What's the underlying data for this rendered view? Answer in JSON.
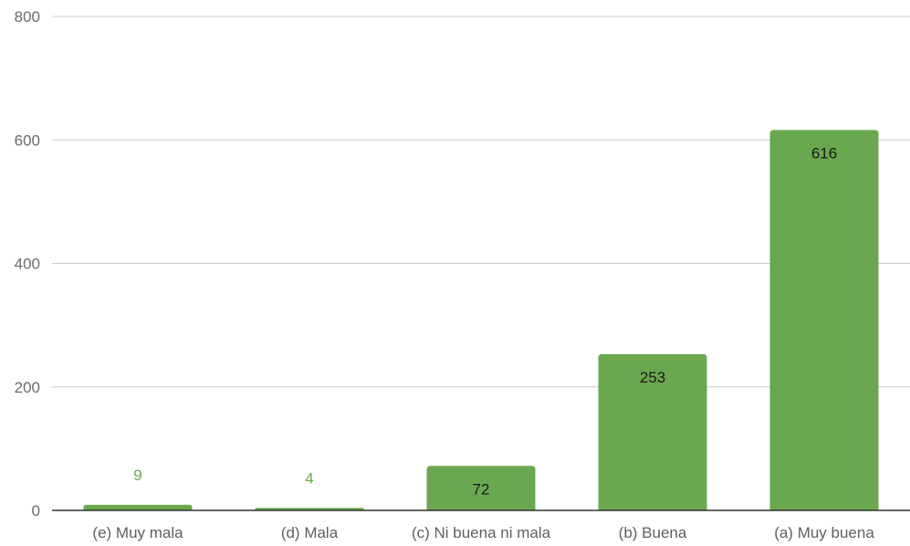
{
  "chart_data": {
    "type": "bar",
    "title": "",
    "xlabel": "",
    "ylabel": "",
    "categories": [
      "(e) Muy mala",
      "(d) Mala",
      "(c) Ni buena ni mala",
      "(b) Buena",
      "(a) Muy buena"
    ],
    "values": [
      9,
      4,
      72,
      253,
      616
    ],
    "ylim": [
      0,
      800
    ],
    "yticks": [
      0,
      200,
      400,
      600,
      800
    ],
    "grid": true,
    "legend": "none",
    "colors": {
      "bar": "#6aa84f",
      "label_inside": "#1a1a1a",
      "label_outside": "#6aa84f",
      "grid": "#cccccc",
      "axis": "#333333"
    }
  }
}
